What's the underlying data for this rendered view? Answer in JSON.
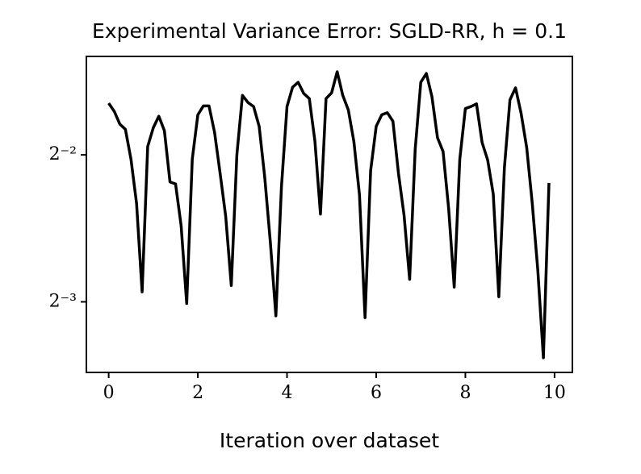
{
  "chart_data": {
    "type": "line",
    "title": "Experimental Variance Error: SGLD-RR, h = 0.1",
    "xlabel": "Iteration over dataset",
    "x": [
      0,
      0.125,
      0.25,
      0.375,
      0.5,
      0.625,
      0.75,
      0.875,
      1,
      1.125,
      1.25,
      1.375,
      1.5,
      1.625,
      1.75,
      1.875,
      2,
      2.125,
      2.25,
      2.375,
      2.5,
      2.625,
      2.75,
      2.875,
      3,
      3.125,
      3.25,
      3.375,
      3.5,
      3.625,
      3.75,
      3.875,
      4,
      4.125,
      4.25,
      4.375,
      4.5,
      4.625,
      4.75,
      4.875,
      5,
      5.125,
      5.25,
      5.375,
      5.5,
      5.625,
      5.75,
      5.875,
      6,
      6.125,
      6.25,
      6.375,
      6.5,
      6.625,
      6.75,
      6.875,
      7,
      7.125,
      7.25,
      7.375,
      7.5,
      7.625,
      7.75,
      7.875,
      8,
      8.125,
      8.25,
      8.375,
      8.5,
      8.625,
      8.75,
      8.875,
      9,
      9.125,
      9.25,
      9.375,
      9.5,
      9.625,
      9.75,
      9.875
    ],
    "series": [
      {
        "name": "SGLD-RR",
        "color": "#000000",
        "values": [
          0.319,
          0.307,
          0.289,
          0.282,
          0.245,
          0.199,
          0.131,
          0.26,
          0.284,
          0.3,
          0.28,
          0.22,
          0.218,
          0.179,
          0.124,
          0.245,
          0.302,
          0.315,
          0.315,
          0.278,
          0.229,
          0.187,
          0.135,
          0.25,
          0.331,
          0.32,
          0.314,
          0.286,
          0.225,
          0.166,
          0.117,
          0.215,
          0.314,
          0.344,
          0.352,
          0.334,
          0.326,
          0.267,
          0.189,
          0.326,
          0.335,
          0.37,
          0.331,
          0.309,
          0.266,
          0.207,
          0.116,
          0.232,
          0.286,
          0.302,
          0.305,
          0.293,
          0.229,
          0.188,
          0.139,
          0.257,
          0.352,
          0.367,
          0.329,
          0.271,
          0.254,
          0.194,
          0.134,
          0.245,
          0.311,
          0.314,
          0.318,
          0.265,
          0.244,
          0.208,
          0.128,
          0.235,
          0.324,
          0.343,
          0.304,
          0.259,
          0.199,
          0.145,
          0.096,
          0.219
        ]
      }
    ],
    "xlim": [
      -0.5,
      10.4
    ],
    "xticks": [
      0,
      2,
      4,
      6,
      8,
      10
    ],
    "ylim": [
      0.0896,
      0.3977
    ],
    "ylog": 2,
    "yticks": [
      {
        "value": 0.25,
        "label": "2⁻²"
      },
      {
        "value": 0.125,
        "label": "2⁻³"
      }
    ],
    "grid": false
  }
}
